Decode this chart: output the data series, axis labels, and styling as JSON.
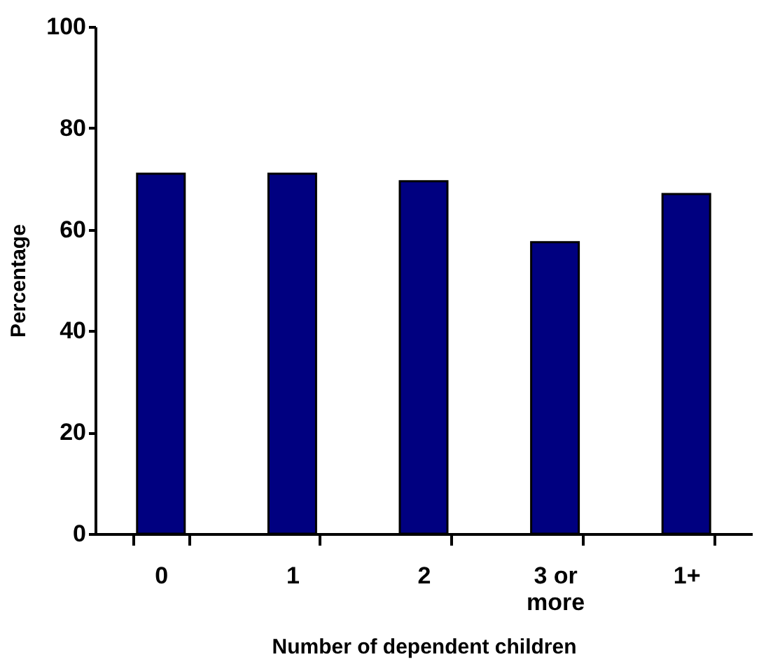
{
  "chart_data": {
    "type": "bar",
    "xlabel": "Number of dependent children",
    "ylabel": "Percentage",
    "categories": [
      "0",
      "1",
      "2",
      "3 or more",
      "1+"
    ],
    "values": [
      71,
      71,
      69.5,
      57.5,
      67
    ],
    "color": "#000080",
    "ylim": [
      0,
      100
    ],
    "yticks": [
      0,
      20,
      40,
      60,
      80,
      100
    ],
    "grid": false,
    "legend": false
  }
}
